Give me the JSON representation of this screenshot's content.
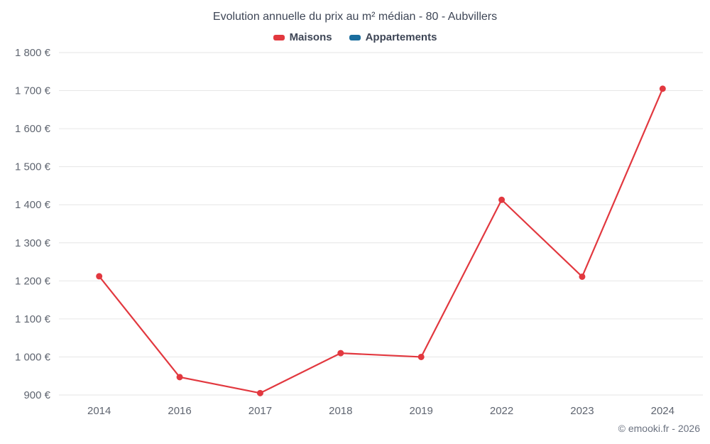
{
  "title": "Evolution annuelle du prix au m² médian - 80 - Aubvillers",
  "credit": "© emooki.fr - 2026",
  "legend": [
    {
      "label": "Maisons",
      "color": "#e2383f"
    },
    {
      "label": "Appartements",
      "color": "#1a6d9e"
    }
  ],
  "chart_data": {
    "type": "line",
    "title": "Evolution annuelle du prix au m² médian - 80 - Aubvillers",
    "categories": [
      "2014",
      "2016",
      "2017",
      "2018",
      "2019",
      "2022",
      "2023",
      "2024"
    ],
    "series": [
      {
        "name": "Maisons",
        "color": "#e2383f",
        "values": [
          1212,
          947,
          905,
          1010,
          1000,
          1413,
          1211,
          1705
        ]
      },
      {
        "name": "Appartements",
        "color": "#1a6d9e",
        "values": []
      }
    ],
    "xlabel": "",
    "ylabel": "",
    "ylim": [
      900,
      1800
    ],
    "ytick_step": 100,
    "ytick_format": "{value} €",
    "grid": "horizontal",
    "legend_position": "top",
    "marker": "circle"
  }
}
